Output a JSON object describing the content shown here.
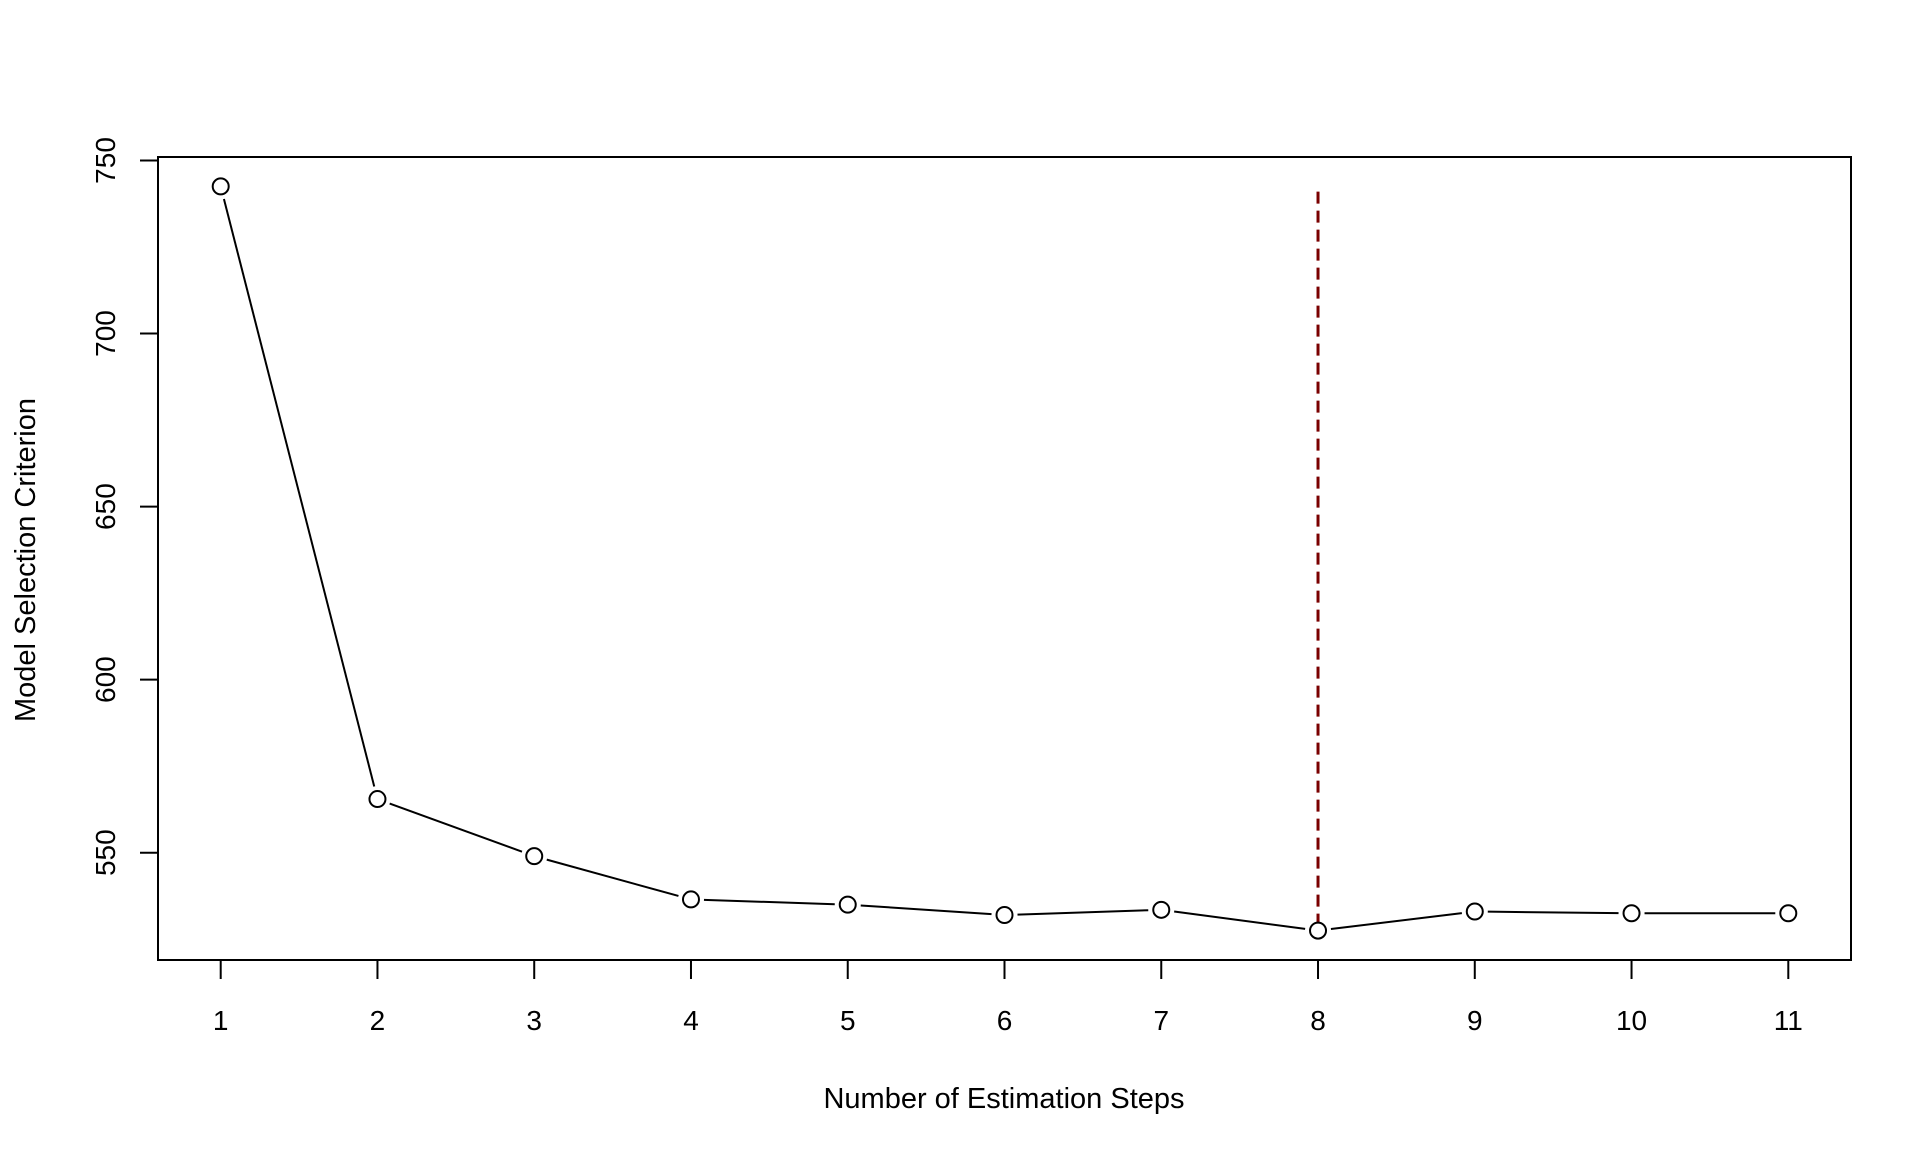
{
  "chart_data": {
    "type": "line",
    "title": "",
    "xlabel": "Number of Estimation Steps",
    "ylabel": "Model Selection Criterion",
    "x": [
      1,
      2,
      3,
      4,
      5,
      6,
      7,
      8,
      9,
      10,
      11
    ],
    "y": [
      742.5,
      565.5,
      549.0,
      536.5,
      535.0,
      532.0,
      533.5,
      527.5,
      533.0,
      532.5,
      532.5
    ],
    "x_ticks": [
      "1",
      "2",
      "3",
      "4",
      "5",
      "6",
      "7",
      "8",
      "9",
      "10",
      "11"
    ],
    "y_ticks": [
      "550",
      "600",
      "650",
      "700",
      "750"
    ],
    "xlim": [
      0.6,
      11.4
    ],
    "ylim": [
      519,
      751
    ],
    "grid": false,
    "marker": "open-circle",
    "line_color": "#000000",
    "reference_line": {
      "x": 8,
      "y_range": [
        527.5,
        741
      ],
      "style": "dashed",
      "color": "#7a0000"
    }
  }
}
